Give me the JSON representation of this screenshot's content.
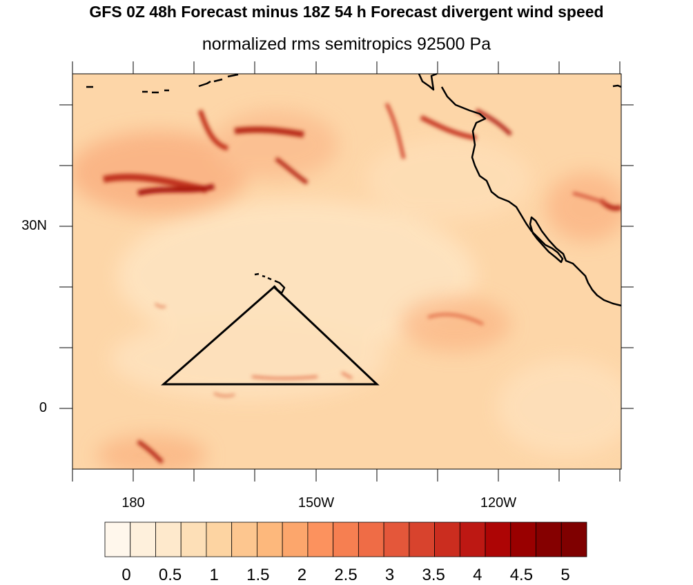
{
  "title": "GFS 0Z 48h Forecast minus 18Z 54 h Forecast divergent wind speed",
  "subtitle": "normalized rms semitropics 92500 Pa",
  "axes": {
    "x_labels": [
      "180",
      "150W",
      "120W"
    ],
    "y_labels": [
      "30N",
      "0"
    ]
  },
  "colorbar": {
    "labels": [
      "0",
      "0.5",
      "1",
      "1.5",
      "2",
      "2.5",
      "3",
      "3.5",
      "4",
      "4.5",
      "5"
    ],
    "colors": [
      "#fff7ec",
      "#fef0dc",
      "#fee9cc",
      "#fddfb7",
      "#fdd4a2",
      "#fdc68f",
      "#fdb87c",
      "#fca66c",
      "#fc925e",
      "#f67f51",
      "#ef6c46",
      "#e4573a",
      "#d8432d",
      "#cb2d1f",
      "#bd1813",
      "#ad0505",
      "#990000",
      "#850000",
      "#7f0000"
    ]
  },
  "map": {
    "region": "North Pacific semitropics",
    "features": [
      "coastline-north-america",
      "hawaii",
      "aleutian-islands",
      "triangle-region"
    ]
  }
}
